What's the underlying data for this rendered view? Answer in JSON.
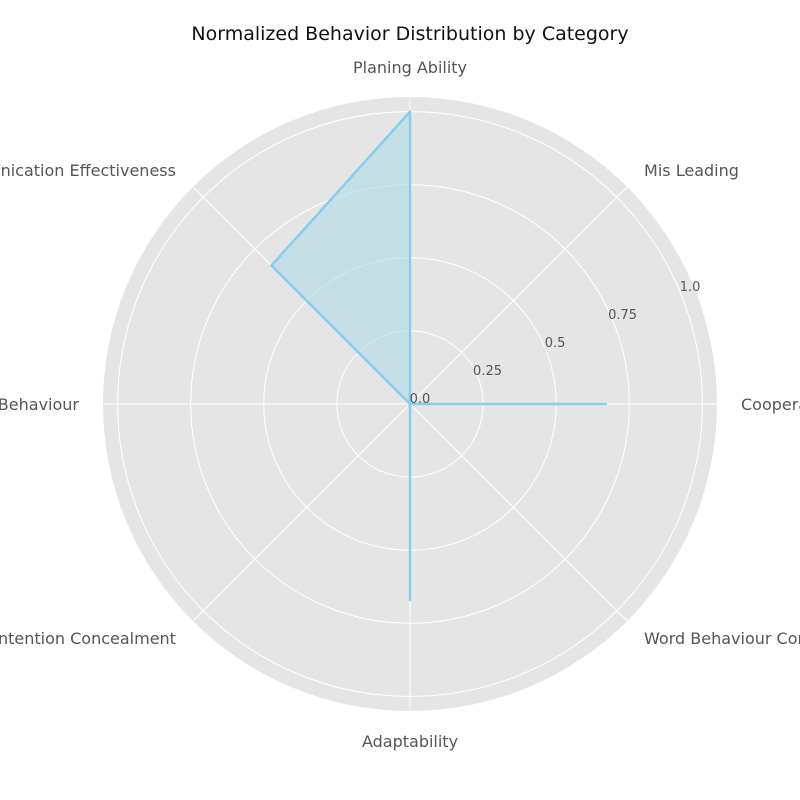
{
  "chart_data": {
    "type": "radar",
    "title": "Normalized Behavior Distribution by Category",
    "categories": [
      "Cooperative Behaviour",
      "Mis Leading",
      "Planing Ability",
      "Communication Effectiveness",
      "Competitive Behaviour",
      "Intention Concealment",
      "Adaptability",
      "Word Behaviour Consistency"
    ],
    "values": [
      0.67,
      0.0,
      1.0,
      0.67,
      0.0,
      0.0,
      0.67,
      0.0
    ],
    "rlim": [
      0,
      1.05
    ],
    "rticks": [
      "0.0",
      "0.25",
      "0.5",
      "0.75",
      "1.0"
    ],
    "rtick_values": [
      0,
      0.25,
      0.5,
      0.75,
      1.0
    ],
    "grid": true,
    "colors": {
      "line": "#87ceeb",
      "fill": "#add8e6",
      "background": "#e5e5e5",
      "grid": "#ffffff"
    }
  }
}
